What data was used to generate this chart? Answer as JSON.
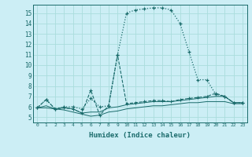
{
  "xlabel": "Humidex (Indice chaleur)",
  "xlim": [
    -0.5,
    23.5
  ],
  "ylim": [
    4.5,
    15.8
  ],
  "yticks": [
    5,
    6,
    7,
    8,
    9,
    10,
    11,
    12,
    13,
    14,
    15
  ],
  "xticks": [
    0,
    1,
    2,
    3,
    4,
    5,
    6,
    7,
    8,
    9,
    10,
    11,
    12,
    13,
    14,
    15,
    16,
    17,
    18,
    19,
    20,
    21,
    22,
    23
  ],
  "bg_color": "#cceef5",
  "grid_color": "#aadddd",
  "line_color": "#1a6b6b",
  "series_main_x": [
    0,
    1,
    2,
    3,
    4,
    5,
    6,
    7,
    8,
    9,
    10,
    11,
    12,
    13,
    14,
    15,
    16,
    17,
    18,
    19,
    20,
    21,
    22,
    23
  ],
  "series_main_y": [
    5.9,
    6.7,
    5.8,
    6.0,
    6.0,
    5.8,
    6.8,
    6.0,
    6.1,
    11.0,
    15.0,
    15.3,
    15.4,
    15.5,
    15.5,
    15.3,
    14.0,
    11.3,
    8.6,
    8.6,
    7.2,
    7.0,
    6.4,
    6.4
  ],
  "series_jagged_x": [
    0,
    1,
    2,
    3,
    4,
    5,
    6,
    7,
    8,
    9,
    10,
    11,
    12,
    13,
    14,
    15,
    16,
    17,
    18,
    19,
    20,
    21,
    22,
    23
  ],
  "series_jagged_y": [
    5.9,
    6.7,
    5.8,
    5.9,
    5.8,
    5.4,
    7.6,
    5.2,
    6.1,
    11.0,
    6.3,
    6.4,
    6.5,
    6.6,
    6.6,
    6.5,
    6.7,
    6.8,
    6.9,
    7.0,
    7.3,
    7.0,
    6.4,
    6.4
  ],
  "series_flat1_x": [
    0,
    1,
    2,
    3,
    4,
    5,
    6,
    7,
    8,
    9,
    10,
    11,
    12,
    13,
    14,
    15,
    16,
    17,
    18,
    19,
    20,
    21,
    22,
    23
  ],
  "series_flat1_y": [
    5.9,
    6.1,
    5.8,
    5.9,
    5.8,
    5.4,
    5.5,
    5.5,
    5.9,
    6.0,
    6.2,
    6.3,
    6.4,
    6.5,
    6.5,
    6.5,
    6.6,
    6.7,
    6.8,
    6.9,
    7.0,
    7.0,
    6.4,
    6.4
  ],
  "series_flat2_x": [
    0,
    1,
    2,
    3,
    4,
    5,
    6,
    7,
    8,
    9,
    10,
    11,
    12,
    13,
    14,
    15,
    16,
    17,
    18,
    19,
    20,
    21,
    22,
    23
  ],
  "series_flat2_y": [
    5.9,
    5.9,
    5.8,
    5.7,
    5.5,
    5.3,
    5.1,
    5.2,
    5.5,
    5.6,
    5.8,
    5.9,
    6.0,
    6.1,
    6.1,
    6.2,
    6.3,
    6.4,
    6.4,
    6.5,
    6.5,
    6.5,
    6.3,
    6.3
  ]
}
